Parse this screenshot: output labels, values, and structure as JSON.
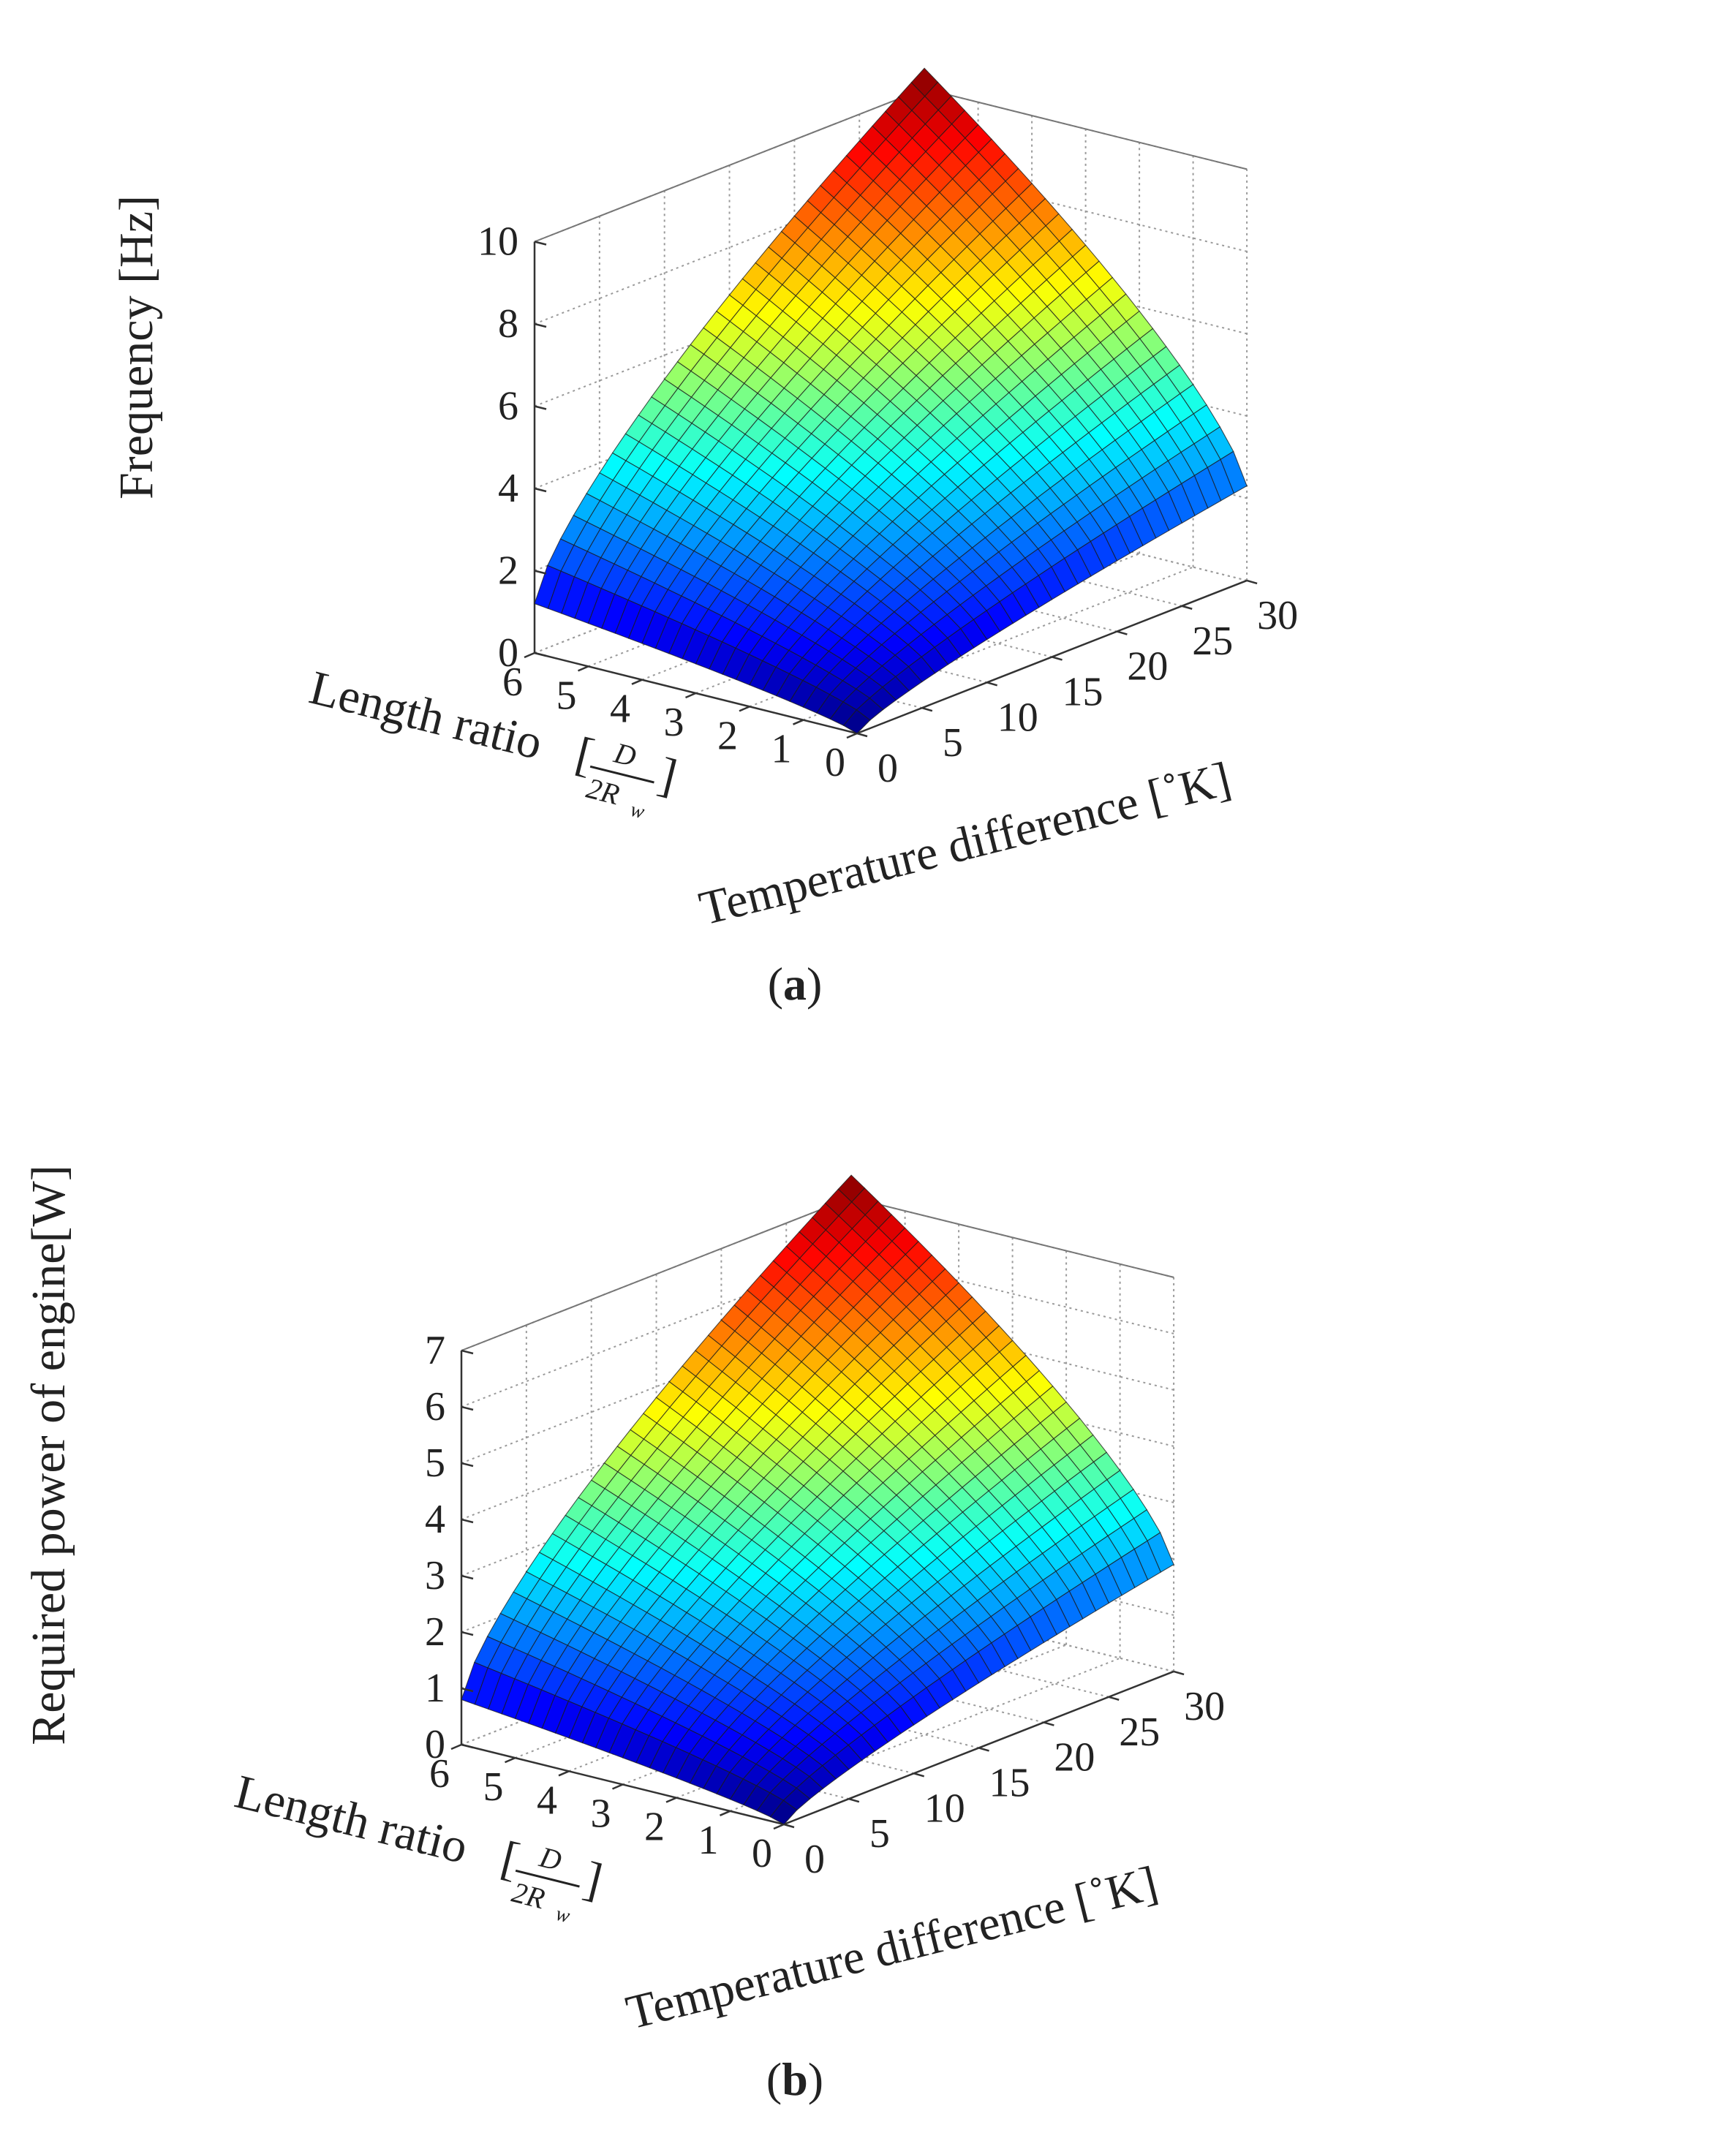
{
  "figure": {
    "panels": [
      {
        "id": "a",
        "caption": {
          "open": "(",
          "letter": "a",
          "close": ")"
        },
        "chart_data": {
          "type": "surface",
          "xlabel": "Length ratio",
          "xlabel_fraction": {
            "open": "[",
            "numerator": "D",
            "denominator_main": "2R",
            "denominator_sub": "w",
            "close": "]"
          },
          "ylabel": "Temperature difference [˚K]",
          "zlabel": "Frequency [Hz]",
          "xlim": [
            0,
            6
          ],
          "ylim": [
            0,
            30
          ],
          "zlim": [
            0,
            10
          ],
          "xticks": [
            0,
            1,
            2,
            3,
            4,
            5,
            6
          ],
          "yticks": [
            0,
            5,
            10,
            15,
            20,
            25,
            30
          ],
          "zticks": [
            0,
            2,
            4,
            6,
            8,
            10
          ],
          "x_grid_steps": 24,
          "y_grid_steps": 30,
          "surface_corners": {
            "x0_y0": 0,
            "x6_y0": 1.2,
            "x0_y30": 2.3,
            "x6_y30": 10.5
          },
          "colormap": "jet",
          "grid": true
        }
      },
      {
        "id": "b",
        "caption": {
          "open": "(",
          "letter": "b",
          "close": ")"
        },
        "chart_data": {
          "type": "surface",
          "xlabel": "Length ratio",
          "xlabel_fraction": {
            "open": "[",
            "numerator": "D",
            "denominator_main": "2R",
            "denominator_sub": "w",
            "close": "]"
          },
          "ylabel": "Temperature difference [˚K]",
          "zlabel": "Required power of engine[W]",
          "xlim": [
            0,
            6
          ],
          "ylim": [
            0,
            30
          ],
          "zlim": [
            0,
            7
          ],
          "xticks": [
            0,
            1,
            2,
            3,
            4,
            5,
            6
          ],
          "yticks": [
            0,
            5,
            10,
            15,
            20,
            25,
            30
          ],
          "zticks": [
            0,
            1,
            2,
            3,
            4,
            5,
            6,
            7
          ],
          "x_grid_steps": 24,
          "y_grid_steps": 30,
          "surface_corners": {
            "x0_y0": 0,
            "x6_y0": 0.8,
            "x0_y30": 1.9,
            "x6_y30": 7.4
          },
          "colormap": "jet",
          "grid": true
        }
      }
    ]
  }
}
